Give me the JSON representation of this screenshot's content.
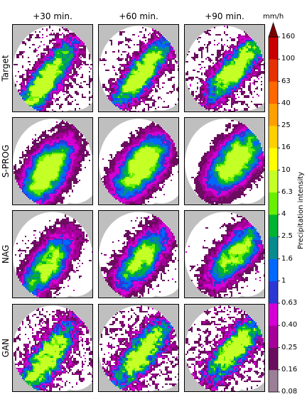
{
  "chart_data": {
    "type": "heatmap",
    "columns": [
      "+30 min.",
      "+60 min.",
      "+90 min."
    ],
    "rows": [
      "Target",
      "S-PROG",
      "NAG",
      "GAN"
    ],
    "colorbar": {
      "unit": "mm/h",
      "label": "Precipitation intensity",
      "ticks": [
        "0.08",
        "0.16",
        "0.25",
        "0.40",
        "0.63",
        "1",
        "1.6",
        "2.5",
        "4",
        "6.3",
        "10",
        "16",
        "25",
        "40",
        "63",
        "100",
        "160"
      ],
      "colors": [
        "#9b7f96",
        "#6a0d5e",
        "#a5009a",
        "#d500d3",
        "#2d37d3",
        "#0067ff",
        "#088b8d",
        "#00b431",
        "#69ef00",
        "#c4ff25",
        "#ffff00",
        "#ffd000",
        "#ffa000",
        "#ff6700",
        "#e63200",
        "#ca0000"
      ],
      "extend": "max"
    },
    "colors": {
      "outside_radar": "#bfbfbf",
      "inside_radar": "#ffffff"
    }
  }
}
